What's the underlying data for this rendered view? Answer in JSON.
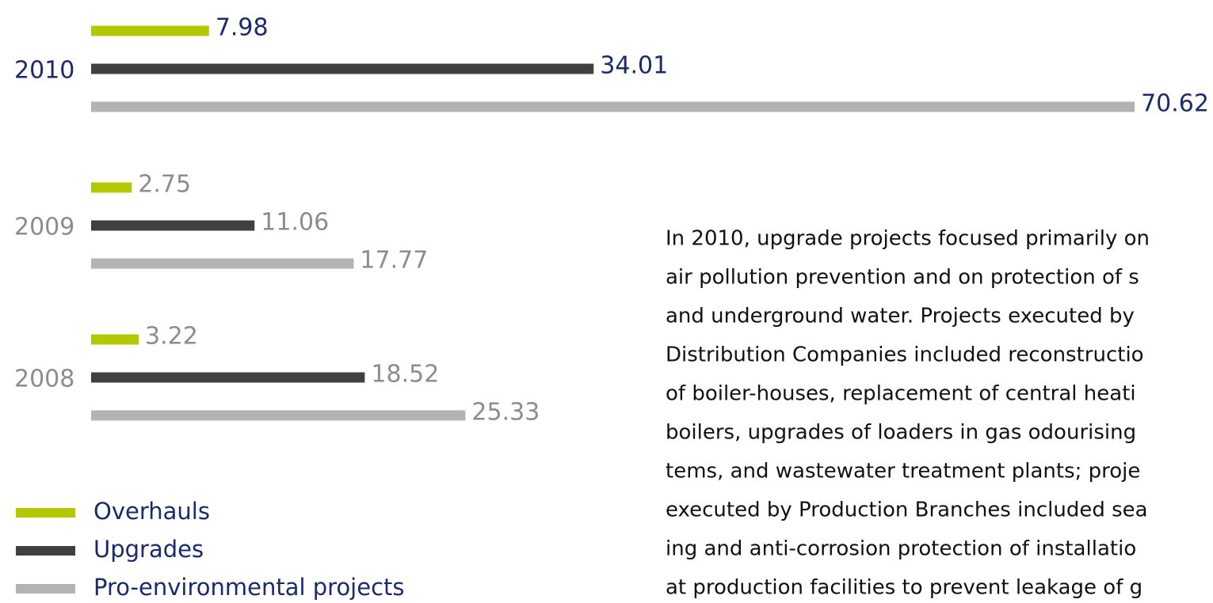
{
  "chart_data": {
    "type": "hbar",
    "categories": [
      "2010",
      "2009",
      "2008"
    ],
    "category_colors": [
      "#1b2a6b",
      "#8c8c8c",
      "#8c8c8c"
    ],
    "series": [
      {
        "name": "Overhauls",
        "color": "#b4c800",
        "values": [
          7.98,
          2.75,
          3.22
        ]
      },
      {
        "name": "Upgrades",
        "color": "#404040",
        "values": [
          34.01,
          11.06,
          18.52
        ]
      },
      {
        "name": "Pro-environmental projects",
        "color": "#b3b3b3",
        "values": [
          70.62,
          17.77,
          25.33
        ]
      }
    ],
    "legend": "bottom-left"
  },
  "text": {
    "lines": [
      "In 2010, upgrade projects focused primarily on",
      "air pollution prevention and on protection of s",
      "and underground water. Projects executed by",
      "Distribution Companies included reconstructio",
      "of boiler-houses, replacement of central heati",
      "boilers, upgrades of loaders in gas odourising",
      "tems, and wastewater treatment plants; proje",
      "executed by Production Branches included sea",
      "ing and anti-corrosion protection of installatio",
      "at production facilities to prevent leakage of g"
    ]
  }
}
